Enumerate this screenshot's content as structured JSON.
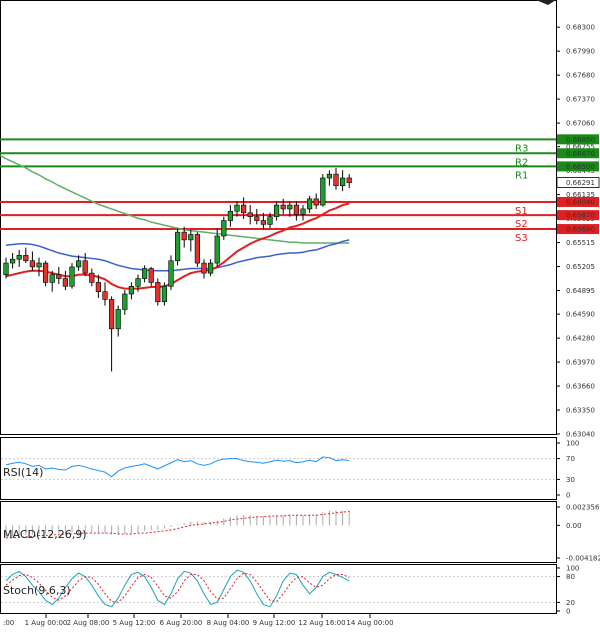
{
  "chart_data": {
    "type": "candlestick",
    "instrument_price_axis": {
      "ticks": [
        "0.68300",
        "0.67990",
        "0.67680",
        "0.67370",
        "0.67060",
        "0.66755",
        "0.66445",
        "0.66135",
        "0.65825",
        "0.65515",
        "0.65205",
        "0.64895",
        "0.64590",
        "0.64280",
        "0.63970",
        "0.63660",
        "0.63350",
        "0.63040"
      ],
      "range": [
        0.6304,
        0.6838
      ]
    },
    "x_tick_labels": [
      "1 Aug 00:00",
      "2 Aug 08:00",
      "5 Aug 12:00",
      "6 Aug 20:00",
      "8 Aug 04:00",
      "9 Aug 12:00",
      "12 Aug 16:00",
      "14 Aug 00:00"
    ],
    "x_tick_labels_partial_left": ":00",
    "current_price": "0.66291",
    "levels": [
      {
        "name": "R3",
        "value": 0.6685,
        "label": "0.66850",
        "color": "#1a8a1a"
      },
      {
        "name": "R2",
        "value": 0.6667,
        "label": "0.66670",
        "color": "#1a8a1a"
      },
      {
        "name": "R1",
        "value": 0.665,
        "label": "0.66500",
        "color": "#1a8a1a"
      },
      {
        "name": "S1",
        "value": 0.6604,
        "label": "0.66040",
        "color": "#e02020"
      },
      {
        "name": "S2",
        "value": 0.6587,
        "label": "0.65870",
        "color": "#e02020"
      },
      {
        "name": "S3",
        "value": 0.6569,
        "label": "0.65690",
        "color": "#e02020"
      }
    ],
    "candles": [
      [
        0.651,
        0.6532,
        0.6505,
        0.6525
      ],
      [
        0.6525,
        0.6538,
        0.6518,
        0.653
      ],
      [
        0.653,
        0.6542,
        0.652,
        0.6535
      ],
      [
        0.6535,
        0.6545,
        0.6525,
        0.6528
      ],
      [
        0.6528,
        0.654,
        0.6515,
        0.652
      ],
      [
        0.652,
        0.6532,
        0.6508,
        0.6525
      ],
      [
        0.6525,
        0.6528,
        0.6495,
        0.65
      ],
      [
        0.65,
        0.6515,
        0.6488,
        0.651
      ],
      [
        0.651,
        0.652,
        0.6498,
        0.6505
      ],
      [
        0.6505,
        0.6515,
        0.649,
        0.6495
      ],
      [
        0.6495,
        0.6525,
        0.6492,
        0.652
      ],
      [
        0.652,
        0.6535,
        0.6515,
        0.6528
      ],
      [
        0.6528,
        0.6538,
        0.6508,
        0.6512
      ],
      [
        0.6512,
        0.6518,
        0.6495,
        0.65
      ],
      [
        0.65,
        0.651,
        0.648,
        0.6488
      ],
      [
        0.6488,
        0.65,
        0.647,
        0.6478
      ],
      [
        0.6478,
        0.6482,
        0.6385,
        0.644
      ],
      [
        0.644,
        0.647,
        0.643,
        0.6465
      ],
      [
        0.6465,
        0.649,
        0.6458,
        0.6485
      ],
      [
        0.6485,
        0.65,
        0.6478,
        0.6495
      ],
      [
        0.6495,
        0.651,
        0.6488,
        0.6505
      ],
      [
        0.6505,
        0.6522,
        0.65,
        0.6518
      ],
      [
        0.6518,
        0.652,
        0.6495,
        0.65
      ],
      [
        0.65,
        0.6505,
        0.647,
        0.6475
      ],
      [
        0.6475,
        0.65,
        0.647,
        0.6495
      ],
      [
        0.6495,
        0.6535,
        0.649,
        0.6528
      ],
      [
        0.6528,
        0.657,
        0.6522,
        0.6565
      ],
      [
        0.6565,
        0.6572,
        0.6545,
        0.6555
      ],
      [
        0.6555,
        0.6568,
        0.654,
        0.6562
      ],
      [
        0.6562,
        0.6565,
        0.652,
        0.6525
      ],
      [
        0.6525,
        0.653,
        0.6505,
        0.6512
      ],
      [
        0.6512,
        0.653,
        0.6508,
        0.6525
      ],
      [
        0.6525,
        0.657,
        0.652,
        0.656
      ],
      [
        0.656,
        0.6585,
        0.6555,
        0.658
      ],
      [
        0.658,
        0.66,
        0.6572,
        0.6592
      ],
      [
        0.6592,
        0.6605,
        0.6585,
        0.66
      ],
      [
        0.66,
        0.661,
        0.6582,
        0.659
      ],
      [
        0.659,
        0.66,
        0.6575,
        0.6585
      ],
      [
        0.6585,
        0.6595,
        0.6575,
        0.658
      ],
      [
        0.658,
        0.659,
        0.6568,
        0.6575
      ],
      [
        0.6575,
        0.659,
        0.657,
        0.6585
      ],
      [
        0.6585,
        0.6605,
        0.658,
        0.66
      ],
      [
        0.66,
        0.6608,
        0.6588,
        0.6595
      ],
      [
        0.6595,
        0.6605,
        0.6585,
        0.66
      ],
      [
        0.66,
        0.6605,
        0.658,
        0.6588
      ],
      [
        0.6588,
        0.66,
        0.658,
        0.6595
      ],
      [
        0.6595,
        0.6612,
        0.659,
        0.6608
      ],
      [
        0.6608,
        0.6615,
        0.6595,
        0.66
      ],
      [
        0.66,
        0.664,
        0.6598,
        0.6635
      ],
      [
        0.6635,
        0.6645,
        0.6625,
        0.664
      ],
      [
        0.664,
        0.6648,
        0.662,
        0.6625
      ],
      [
        0.6625,
        0.6645,
        0.6618,
        0.6635
      ],
      [
        0.6635,
        0.664,
        0.6622,
        0.6629
      ]
    ],
    "ma_red": [
      0.6508,
      0.651,
      0.6512,
      0.6514,
      0.6515,
      0.6515,
      0.6514,
      0.6512,
      0.651,
      0.6508,
      0.6508,
      0.651,
      0.651,
      0.6509,
      0.6507,
      0.6504,
      0.6498,
      0.6494,
      0.6492,
      0.6492,
      0.6492,
      0.6493,
      0.6494,
      0.6494,
      0.6495,
      0.6498,
      0.6503,
      0.6508,
      0.6512,
      0.6514,
      0.6515,
      0.6516,
      0.652,
      0.6526,
      0.6533,
      0.654,
      0.6545,
      0.655,
      0.6554,
      0.6557,
      0.656,
      0.6564,
      0.6567,
      0.6571,
      0.6573,
      0.6576,
      0.658,
      0.6583,
      0.6588,
      0.6593,
      0.6596,
      0.66,
      0.6602
    ],
    "ma_blue": [
      0.6548,
      0.6549,
      0.655,
      0.655,
      0.6549,
      0.6547,
      0.6544,
      0.6541,
      0.6538,
      0.6536,
      0.6534,
      0.6533,
      0.6532,
      0.6531,
      0.653,
      0.6528,
      0.6525,
      0.6522,
      0.652,
      0.6518,
      0.6517,
      0.6516,
      0.6515,
      0.6515,
      0.6515,
      0.6515,
      0.6516,
      0.6517,
      0.6518,
      0.6518,
      0.6518,
      0.6518,
      0.6519,
      0.6521,
      0.6523,
      0.6526,
      0.6528,
      0.653,
      0.6532,
      0.6533,
      0.6534,
      0.6536,
      0.6537,
      0.6538,
      0.6538,
      0.6539,
      0.6541,
      0.6542,
      0.6545,
      0.6548,
      0.655,
      0.6553,
      0.6555
    ],
    "ma_green": [
      0.666,
      0.6656,
      0.6652,
      0.6648,
      0.6643,
      0.6639,
      0.6634,
      0.663,
      0.6625,
      0.6621,
      0.6617,
      0.6613,
      0.6609,
      0.6605,
      0.6601,
      0.6598,
      0.6595,
      0.6592,
      0.6589,
      0.6586,
      0.6583,
      0.6581,
      0.6578,
      0.6576,
      0.6574,
      0.6572,
      0.657,
      0.6568,
      0.6567,
      0.6566,
      0.6565,
      0.6564,
      0.6563,
      0.6562,
      0.6561,
      0.656,
      0.6559,
      0.6558,
      0.6557,
      0.6556,
      0.6555,
      0.6554,
      0.6553,
      0.6552,
      0.6552,
      0.6551,
      0.6551,
      0.6551,
      0.6551,
      0.6551,
      0.6551,
      0.6551,
      0.6551
    ],
    "rsi": {
      "label": "RSI(14)",
      "ticks": [
        "100",
        "70",
        "30",
        "0"
      ],
      "values": [
        58,
        61,
        63,
        60,
        55,
        57,
        50,
        52,
        49,
        48,
        55,
        57,
        54,
        50,
        47,
        44,
        35,
        46,
        52,
        55,
        57,
        60,
        55,
        50,
        56,
        62,
        68,
        64,
        66,
        60,
        57,
        60,
        66,
        69,
        70,
        70,
        66,
        64,
        63,
        61,
        64,
        67,
        65,
        66,
        62,
        64,
        67,
        64,
        73,
        72,
        66,
        68,
        66
      ]
    },
    "macd": {
      "label": "MACD(12,26,9)",
      "ticks": [
        "0.002356",
        "0.00",
        "-0.004182"
      ],
      "histogram": [
        -0.0015,
        -0.0014,
        -0.0013,
        -0.0012,
        -0.0012,
        -0.0011,
        -0.0011,
        -0.001,
        -0.001,
        -0.001,
        -0.0009,
        -0.0009,
        -0.0009,
        -0.0009,
        -0.0009,
        -0.001,
        -0.0012,
        -0.0012,
        -0.0011,
        -0.001,
        -0.0009,
        -0.0007,
        -0.0006,
        -0.0006,
        -0.0004,
        -0.0002,
        0.0001,
        0.0003,
        0.0005,
        0.0005,
        0.0004,
        0.0004,
        0.0006,
        0.0009,
        0.0011,
        0.0013,
        0.0013,
        0.0013,
        0.0012,
        0.0012,
        0.0012,
        0.0013,
        0.0013,
        0.0014,
        0.0013,
        0.0013,
        0.0014,
        0.0014,
        0.0017,
        0.0019,
        0.0019,
        0.0019,
        0.0019
      ],
      "signal": [
        -0.0016,
        -0.0016,
        -0.0015,
        -0.0015,
        -0.0014,
        -0.0013,
        -0.0013,
        -0.0012,
        -0.0012,
        -0.0011,
        -0.0011,
        -0.001,
        -0.001,
        -0.001,
        -0.001,
        -0.001,
        -0.001,
        -0.0011,
        -0.0011,
        -0.0011,
        -0.001,
        -0.001,
        -0.0009,
        -0.0008,
        -0.0007,
        -0.0006,
        -0.0004,
        -0.0002,
        0.0,
        0.0001,
        0.0002,
        0.0003,
        0.0004,
        0.0005,
        0.0007,
        0.0008,
        0.0009,
        0.001,
        0.0011,
        0.0011,
        0.0012,
        0.0012,
        0.0012,
        0.0013,
        0.0013,
        0.0013,
        0.0013,
        0.0013,
        0.0014,
        0.0015,
        0.0016,
        0.0017,
        0.0018
      ]
    },
    "stoch": {
      "label": "Stoch(9,6,3)",
      "ticks": [
        "100",
        "80",
        "20",
        "0"
      ],
      "k": [
        70,
        85,
        92,
        80,
        60,
        45,
        25,
        15,
        30,
        55,
        75,
        88,
        80,
        60,
        35,
        15,
        10,
        30,
        60,
        85,
        90,
        80,
        55,
        25,
        15,
        40,
        75,
        92,
        88,
        70,
        40,
        15,
        20,
        50,
        80,
        95,
        90,
        70,
        40,
        15,
        10,
        35,
        70,
        88,
        85,
        60,
        40,
        55,
        80,
        90,
        85,
        78,
        70
      ],
      "d": [
        60,
        72,
        82,
        85,
        78,
        65,
        48,
        32,
        25,
        35,
        52,
        70,
        80,
        78,
        62,
        40,
        22,
        20,
        35,
        58,
        78,
        85,
        78,
        58,
        35,
        30,
        45,
        70,
        85,
        85,
        70,
        45,
        28,
        30,
        52,
        75,
        88,
        85,
        68,
        45,
        25,
        22,
        40,
        62,
        78,
        80,
        65,
        55,
        60,
        75,
        85,
        85,
        78
      ]
    }
  }
}
